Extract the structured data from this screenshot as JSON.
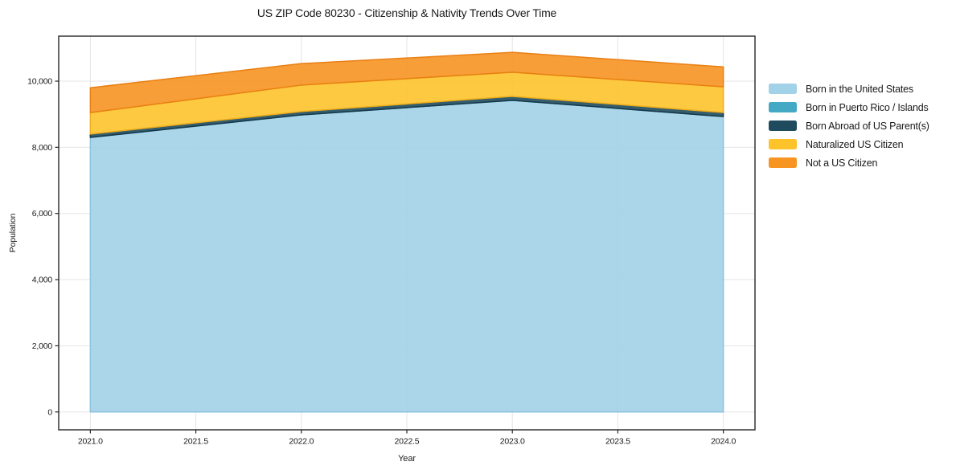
{
  "title": "US ZIP Code 80230 - Citizenship & Nativity Trends Over Time",
  "chart_data": {
    "type": "area",
    "stacked": true,
    "title": "US ZIP Code 80230 - Citizenship & Nativity Trends Over Time",
    "xlabel": "Year",
    "ylabel": "Population",
    "x": [
      2021,
      2022,
      2023,
      2024
    ],
    "series": [
      {
        "name": "Born in the United States",
        "color": "#A2D2E8",
        "edge": "#8CC2DC",
        "values": [
          8300,
          8980,
          9420,
          8930
        ]
      },
      {
        "name": "Born in Puerto Rico / Islands",
        "color": "#44A9C4",
        "edge": "#3B96AE",
        "values": [
          0,
          0,
          0,
          0
        ]
      },
      {
        "name": "Born Abroad of US Parent(s)",
        "color": "#1E4B5E",
        "edge": "#16394A",
        "values": [
          100,
          100,
          120,
          120
        ]
      },
      {
        "name": "Naturalized US Citizen",
        "color": "#FCC32B",
        "edge": "#EFAE1B",
        "values": [
          650,
          800,
          730,
          780
        ]
      },
      {
        "name": "Not a US Citizen",
        "color": "#F79422",
        "edge": "#E87F13",
        "values": [
          750,
          650,
          600,
          600
        ]
      }
    ],
    "totals": [
      9800,
      10530,
      10870,
      10430
    ],
    "xlim": [
      2020.85,
      2024.15
    ],
    "ylim": [
      -540,
      11360
    ],
    "x_ticks": [
      {
        "v": 2021.0,
        "label": "2021.0"
      },
      {
        "v": 2021.5,
        "label": "2021.5"
      },
      {
        "v": 2022.0,
        "label": "2022.0"
      },
      {
        "v": 2022.5,
        "label": "2022.5"
      },
      {
        "v": 2023.0,
        "label": "2023.0"
      },
      {
        "v": 2023.5,
        "label": "2023.5"
      },
      {
        "v": 2024.0,
        "label": "2024.0"
      }
    ],
    "y_ticks": [
      {
        "v": 0,
        "label": "0"
      },
      {
        "v": 2000,
        "label": "2,000"
      },
      {
        "v": 4000,
        "label": "4,000"
      },
      {
        "v": 6000,
        "label": "6,000"
      },
      {
        "v": 8000,
        "label": "8,000"
      },
      {
        "v": 10000,
        "label": "10,000"
      }
    ],
    "grid": true,
    "legend_position": "right"
  },
  "colors": {
    "background": "#FFFFFF",
    "grid": "#E5E5E5",
    "spine": "#262626",
    "tick_text": "#1A1A1A",
    "title_text": "#1A1A1A",
    "fill_opacity": 0.9
  }
}
